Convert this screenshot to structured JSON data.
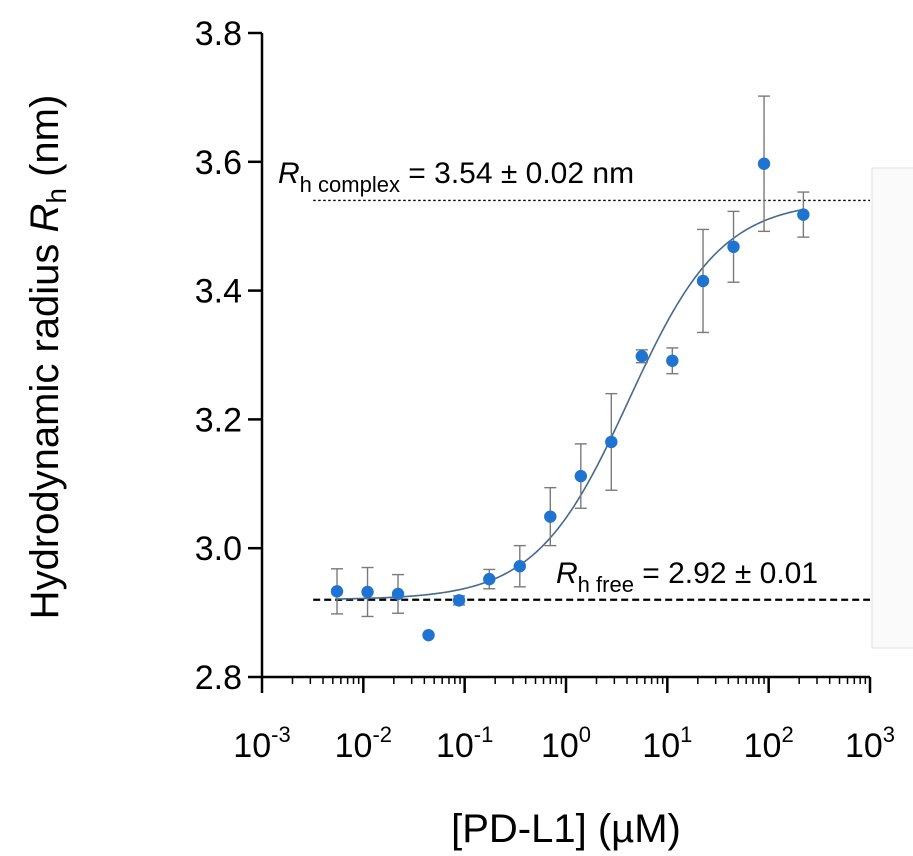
{
  "chart_data": {
    "type": "scatter",
    "title": "",
    "xlabel_prefix": "[PD-L1] (",
    "xlabel_unit": "µM",
    "xlabel_suffix": ")",
    "ylabel_prefix": "Hydrodynamic radius ",
    "ylabel_symbol": "R",
    "ylabel_subscript": "h",
    "ylabel_suffix": " (nm)",
    "x_scale": "log",
    "xlim": [
      0.001,
      1000
    ],
    "ylim": [
      2.8,
      3.8
    ],
    "x_ticks": [
      {
        "base": "10",
        "exp": "-3"
      },
      {
        "base": "10",
        "exp": "-2"
      },
      {
        "base": "10",
        "exp": "-1"
      },
      {
        "base": "10",
        "exp": "0"
      },
      {
        "base": "10",
        "exp": "1"
      },
      {
        "base": "10",
        "exp": "2"
      },
      {
        "base": "10",
        "exp": "3"
      }
    ],
    "y_ticks": [
      "2.8",
      "3.0",
      "3.2",
      "3.4",
      "3.6",
      "3.8"
    ],
    "points": [
      {
        "x": 0.0055,
        "y": 2.933,
        "err": 0.035
      },
      {
        "x": 0.011,
        "y": 2.932,
        "err": 0.038
      },
      {
        "x": 0.022,
        "y": 2.929,
        "err": 0.03
      },
      {
        "x": 0.044,
        "y": 2.865,
        "err": 0
      },
      {
        "x": 0.088,
        "y": 2.919,
        "err": 0.007
      },
      {
        "x": 0.175,
        "y": 2.952,
        "err": 0.015
      },
      {
        "x": 0.35,
        "y": 2.972,
        "err": 0.032
      },
      {
        "x": 0.7,
        "y": 3.049,
        "err": 0.045
      },
      {
        "x": 1.4,
        "y": 3.112,
        "err": 0.05
      },
      {
        "x": 2.8,
        "y": 3.165,
        "err": 0.075
      },
      {
        "x": 5.6,
        "y": 3.298,
        "err": 0.01
      },
      {
        "x": 11.2,
        "y": 3.291,
        "err": 0.02
      },
      {
        "x": 22.5,
        "y": 3.415,
        "err": 0.08
      },
      {
        "x": 45,
        "y": 3.468,
        "err": 0.055
      },
      {
        "x": 90,
        "y": 3.597,
        "err": 0.105
      },
      {
        "x": 220,
        "y": 3.518,
        "err": 0.035
      }
    ],
    "fit": {
      "bottom": 2.92,
      "top": 3.54,
      "logEC50": 0.62,
      "hill": 0.95
    },
    "reference_lines": [
      {
        "y": 3.54,
        "style": "dotted",
        "x_start": 0.0032,
        "x_end": 1000
      },
      {
        "y": 2.92,
        "style": "dashed",
        "x_start": 0.0032,
        "x_end": 1000
      }
    ],
    "annotations": {
      "complex": {
        "symbol": "R",
        "subscript": "h complex",
        "text": " = 3.54 ± 0.02 nm"
      },
      "free": {
        "symbol": "R",
        "subscript": "h free",
        "text": " = 2.92 ± 0.01"
      }
    },
    "colors": {
      "point": "#1f73d1",
      "fit": "#47698e",
      "error": "#7a7a7a",
      "axis": "#000000"
    }
  }
}
